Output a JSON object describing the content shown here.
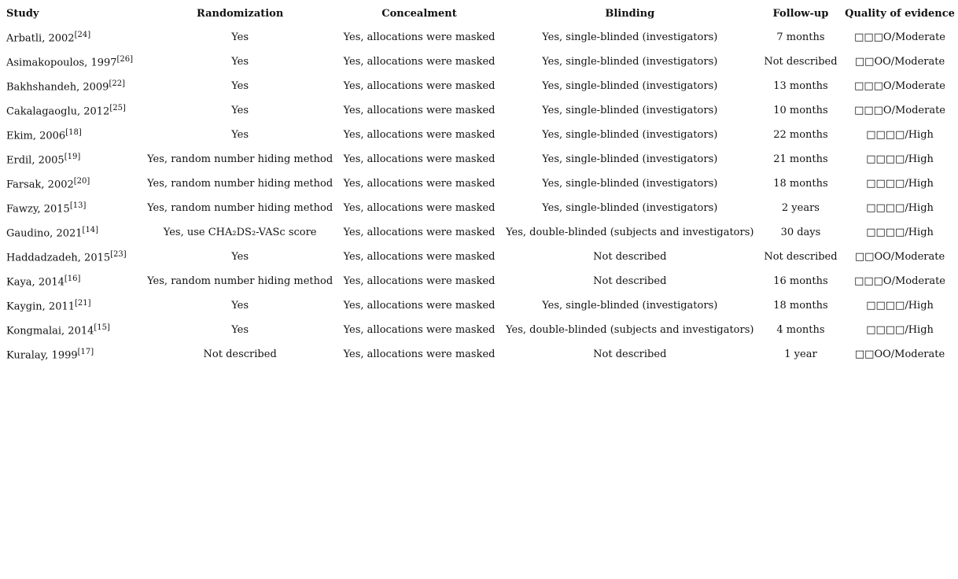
{
  "table": {
    "headers": [
      "Study",
      "Randomization",
      "Concealment",
      "Blinding",
      "Follow-up",
      "Quality of evidence"
    ],
    "rows": [
      {
        "study": "Arbatli, 2002",
        "ref": "[24]",
        "randomization": "Yes",
        "concealment": "Yes, allocations were masked",
        "blinding": "Yes, single-blinded (investigators)",
        "followup": "7 months",
        "quality": "□□□O/Moderate"
      },
      {
        "study": "Asimakopoulos, 1997",
        "ref": "[26]",
        "randomization": "Yes",
        "concealment": "Yes, allocations were masked",
        "blinding": "Yes, single-blinded (investigators)",
        "followup": "Not described",
        "quality": "□□OO/Moderate"
      },
      {
        "study": "Bakhshandeh, 2009",
        "ref": "[22]",
        "randomization": "Yes",
        "concealment": "Yes, allocations were masked",
        "blinding": "Yes, single-blinded (investigators)",
        "followup": "13 months",
        "quality": "□□□O/Moderate"
      },
      {
        "study": "Cakalagaoglu, 2012",
        "ref": "[25]",
        "randomization": "Yes",
        "concealment": "Yes, allocations were masked",
        "blinding": "Yes, single-blinded (investigators)",
        "followup": "10 months",
        "quality": "□□□O/Moderate"
      },
      {
        "study": "Ekim, 2006",
        "ref": "[18]",
        "randomization": "Yes",
        "concealment": "Yes, allocations were masked",
        "blinding": "Yes, single-blinded (investigators)",
        "followup": "22 months",
        "quality": "□□□□/High"
      },
      {
        "study": "Erdil, 2005",
        "ref": "[19]",
        "randomization": "Yes, random number hiding method",
        "concealment": "Yes, allocations were masked",
        "blinding": "Yes, single-blinded (investigators)",
        "followup": "21 months",
        "quality": "□□□□/High"
      },
      {
        "study": "Farsak, 2002",
        "ref": "[20]",
        "randomization": "Yes, random number hiding method",
        "concealment": "Yes, allocations were masked",
        "blinding": "Yes, single-blinded (investigators)",
        "followup": "18 months",
        "quality": "□□□□/High"
      },
      {
        "study": "Fawzy, 2015",
        "ref": "[13]",
        "randomization": "Yes, random number hiding method",
        "concealment": "Yes, allocations were masked",
        "blinding": "Yes, single-blinded (investigators)",
        "followup": "2 years",
        "quality": "□□□□/High"
      },
      {
        "study": "Gaudino, 2021",
        "ref": "[14]",
        "randomization": "Yes, use CHA₂DS₂-VASc score",
        "concealment": "Yes, allocations were masked",
        "blinding": "Yes, double-blinded (subjects and investigators)",
        "followup": "30 days",
        "quality": "□□□□/High"
      },
      {
        "study": "Haddadzadeh, 2015",
        "ref": "[23]",
        "randomization": "Yes",
        "concealment": "Yes, allocations were masked",
        "blinding": "Not described",
        "followup": "Not described",
        "quality": "□□OO/Moderate"
      },
      {
        "study": "Kaya, 2014",
        "ref": "[16]",
        "randomization": "Yes, random number hiding method",
        "concealment": "Yes, allocations were masked",
        "blinding": "Not described",
        "followup": "16 months",
        "quality": "□□□O/Moderate"
      },
      {
        "study": "Kaygin, 2011",
        "ref": "[21]",
        "randomization": "Yes",
        "concealment": "Yes, allocations were masked",
        "blinding": "Yes, single-blinded (investigators)",
        "followup": "18 months",
        "quality": "□□□□/High"
      },
      {
        "study": "Kongmalai, 2014",
        "ref": "[15]",
        "randomization": "Yes",
        "concealment": "Yes, allocations were masked",
        "blinding": "Yes, double-blinded (subjects and investigators)",
        "followup": "4 months",
        "quality": "□□□□/High"
      },
      {
        "study": "Kuralay, 1999",
        "ref": "[17]",
        "randomization": "Not described",
        "concealment": "Yes, allocations were masked",
        "blinding": "Not described",
        "followup": "1 year",
        "quality": "□□OO/Moderate"
      }
    ]
  }
}
